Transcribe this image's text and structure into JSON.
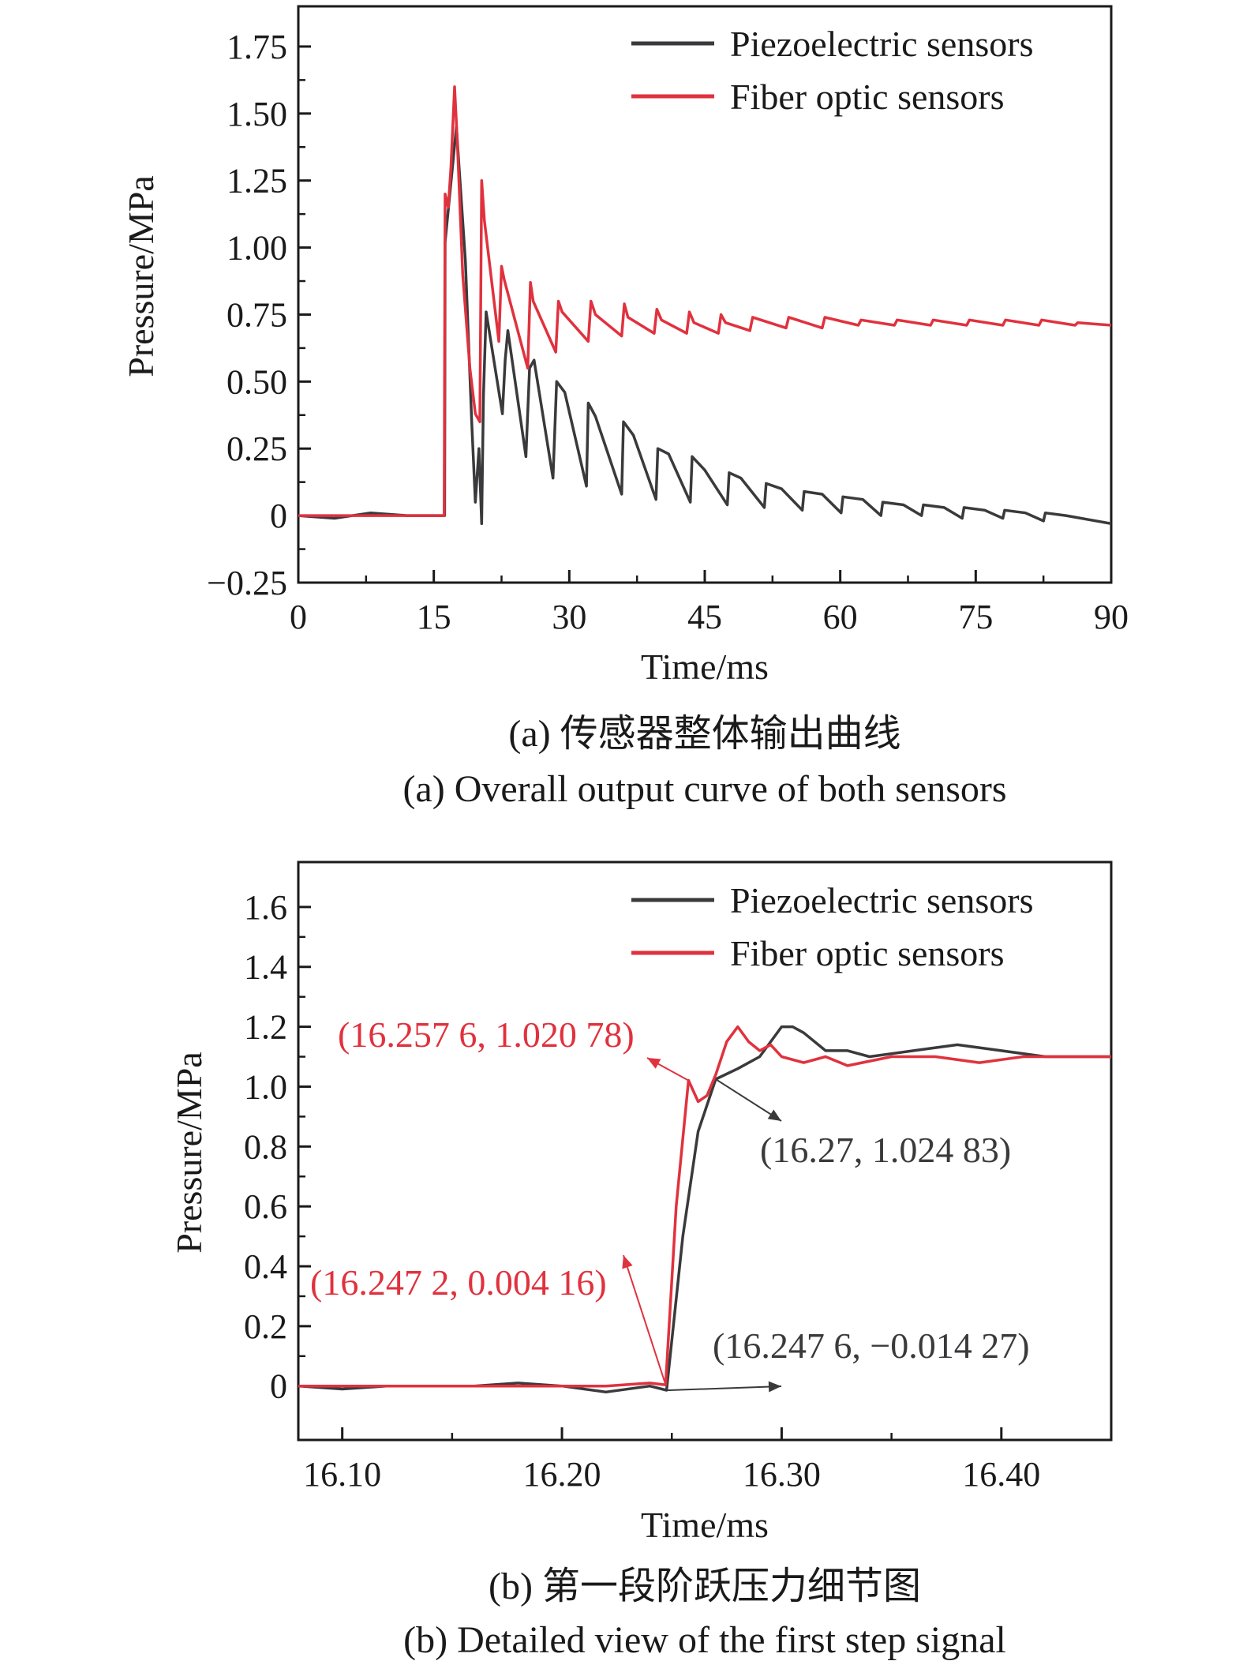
{
  "colors": {
    "piezo": "#3a3a3c",
    "fiber": "#e0323e",
    "axis": "#1a1a1a"
  },
  "chart_data": [
    {
      "type": "line",
      "xlabel": "Time/ms",
      "ylabel": "Pressure/MPa",
      "xlim": [
        0,
        90
      ],
      "ylim": [
        -0.25,
        1.9
      ],
      "xticks": [
        0,
        15,
        30,
        45,
        60,
        75,
        90
      ],
      "xtick_labels": [
        "0",
        "15",
        "30",
        "45",
        "60",
        "75",
        "90"
      ],
      "yticks": [
        -0.25,
        0,
        0.25,
        0.5,
        0.75,
        1.0,
        1.25,
        1.5,
        1.75
      ],
      "ytick_labels": [
        "−0.25",
        "0",
        "0.25",
        "0.50",
        "0.75",
        "1.00",
        "1.25",
        "1.50",
        "1.75"
      ],
      "grid": false,
      "legend_position": "top-right",
      "series": [
        {
          "name": "Piezoelectric sensors",
          "color": "#3a3a3c",
          "x": [
            0,
            4,
            8,
            12,
            16.2,
            16.25,
            17.5,
            18.5,
            19.2,
            19.6,
            20.0,
            20.3,
            20.5,
            20.8,
            22.6,
            22.9,
            23.2,
            25.2,
            25.6,
            26.1,
            28.2,
            28.6,
            29.5,
            31.9,
            32.1,
            32.9,
            35.8,
            36.0,
            37.1,
            39.6,
            39.8,
            41.0,
            43.4,
            43.6,
            45.0,
            47.5,
            47.7,
            49.0,
            51.6,
            51.8,
            53.5,
            55.8,
            56.0,
            58.0,
            60.1,
            60.3,
            62.5,
            64.5,
            64.7,
            67.0,
            69.0,
            69.2,
            71.5,
            73.5,
            73.7,
            76.0,
            78.0,
            78.2,
            80.5,
            82.5,
            82.7,
            85.0,
            90.0
          ],
          "y": [
            0.0,
            -0.01,
            0.01,
            0.0,
            0.0,
            1.02,
            1.45,
            0.95,
            0.35,
            0.05,
            0.25,
            -0.03,
            0.45,
            0.76,
            0.38,
            0.58,
            0.69,
            0.22,
            0.55,
            0.58,
            0.14,
            0.5,
            0.46,
            0.11,
            0.42,
            0.37,
            0.08,
            0.35,
            0.3,
            0.06,
            0.25,
            0.23,
            0.05,
            0.22,
            0.17,
            0.04,
            0.16,
            0.14,
            0.03,
            0.12,
            0.1,
            0.02,
            0.09,
            0.08,
            0.01,
            0.07,
            0.06,
            0.0,
            0.05,
            0.04,
            0.0,
            0.04,
            0.03,
            -0.01,
            0.03,
            0.02,
            -0.01,
            0.02,
            0.01,
            -0.02,
            0.01,
            0.0,
            -0.03
          ]
        },
        {
          "name": "Fiber optic sensors",
          "color": "#e0323e",
          "x": [
            0,
            4,
            8,
            12,
            16.15,
            16.25,
            16.6,
            16.9,
            17.3,
            17.6,
            18.2,
            19.0,
            19.6,
            20.1,
            20.3,
            20.6,
            22.2,
            22.5,
            22.8,
            25.4,
            25.7,
            26.0,
            28.5,
            28.8,
            29.2,
            32.1,
            32.4,
            32.9,
            35.8,
            36.1,
            36.5,
            39.4,
            39.7,
            40.2,
            43.0,
            43.3,
            43.8,
            46.5,
            46.8,
            47.3,
            50.0,
            50.3,
            54.0,
            54.3,
            58.0,
            58.3,
            62.0,
            62.3,
            66.0,
            66.3,
            70.0,
            70.3,
            74.0,
            74.3,
            78.0,
            78.3,
            82.0,
            82.3,
            86.0,
            86.3,
            90.0
          ],
          "y": [
            0.0,
            0.0,
            0.0,
            0.0,
            0.0,
            1.2,
            1.15,
            1.3,
            1.6,
            1.4,
            0.9,
            0.55,
            0.38,
            0.35,
            1.25,
            1.1,
            0.65,
            0.93,
            0.88,
            0.55,
            0.87,
            0.8,
            0.61,
            0.8,
            0.76,
            0.65,
            0.8,
            0.75,
            0.67,
            0.79,
            0.74,
            0.68,
            0.77,
            0.73,
            0.68,
            0.76,
            0.72,
            0.68,
            0.75,
            0.72,
            0.69,
            0.74,
            0.7,
            0.74,
            0.7,
            0.74,
            0.71,
            0.73,
            0.71,
            0.73,
            0.71,
            0.73,
            0.71,
            0.73,
            0.71,
            0.73,
            0.71,
            0.73,
            0.71,
            0.72,
            0.71
          ]
        }
      ]
    },
    {
      "type": "line",
      "xlabel": "Time/ms",
      "ylabel": "Pressure/MPa",
      "xlim": [
        16.08,
        16.45
      ],
      "ylim": [
        -0.18,
        1.75
      ],
      "xticks": [
        16.1,
        16.2,
        16.3,
        16.4
      ],
      "xtick_labels": [
        "16.10",
        "16.20",
        "16.30",
        "16.40"
      ],
      "yticks": [
        0,
        0.2,
        0.4,
        0.6,
        0.8,
        1.0,
        1.2,
        1.4,
        1.6
      ],
      "ytick_labels": [
        "0",
        "0.2",
        "0.4",
        "0.6",
        "0.8",
        "1.0",
        "1.2",
        "1.4",
        "1.6"
      ],
      "grid": false,
      "legend_position": "top-right",
      "series": [
        {
          "name": "Piezoelectric sensors",
          "color": "#3a3a3c",
          "x": [
            16.08,
            16.1,
            16.12,
            16.14,
            16.16,
            16.18,
            16.2,
            16.22,
            16.24,
            16.2476,
            16.255,
            16.262,
            16.27,
            16.28,
            16.29,
            16.295,
            16.3,
            16.305,
            16.31,
            16.32,
            16.33,
            16.34,
            16.36,
            16.38,
            16.4,
            16.42,
            16.45
          ],
          "y": [
            0.0,
            -0.01,
            0.0,
            0.0,
            0.0,
            0.01,
            0.0,
            -0.02,
            0.0,
            -0.014,
            0.5,
            0.85,
            1.025,
            1.06,
            1.1,
            1.15,
            1.2,
            1.2,
            1.18,
            1.12,
            1.12,
            1.1,
            1.12,
            1.14,
            1.12,
            1.1,
            1.1
          ]
        },
        {
          "name": "Fiber optic sensors",
          "color": "#e0323e",
          "x": [
            16.08,
            16.1,
            16.12,
            16.14,
            16.16,
            16.18,
            16.2,
            16.22,
            16.24,
            16.2472,
            16.252,
            16.2576,
            16.262,
            16.266,
            16.27,
            16.275,
            16.28,
            16.285,
            16.29,
            16.295,
            16.3,
            16.31,
            16.32,
            16.33,
            16.35,
            16.37,
            16.39,
            16.41,
            16.43,
            16.45
          ],
          "y": [
            0.0,
            0.0,
            0.0,
            0.0,
            0.0,
            0.0,
            0.0,
            0.0,
            0.01,
            0.004,
            0.6,
            1.021,
            0.95,
            0.97,
            1.04,
            1.15,
            1.2,
            1.15,
            1.12,
            1.14,
            1.1,
            1.08,
            1.1,
            1.07,
            1.1,
            1.1,
            1.08,
            1.1,
            1.1,
            1.1
          ]
        }
      ],
      "annotations": [
        {
          "text": "(16.257 6, 1.020 78)",
          "color": "#e0323e",
          "x": 16.2576,
          "y": 1.02078
        },
        {
          "text": "(16.27, 1.024 83)",
          "color": "#3a3a3c",
          "x": 16.27,
          "y": 1.02483
        },
        {
          "text": "(16.247 2, 0.004 16)",
          "color": "#e0323e",
          "x": 16.2472,
          "y": 0.00416
        },
        {
          "text": "(16.247 6, −0.014 27)",
          "color": "#3a3a3c",
          "x": 16.2476,
          "y": -0.01427
        }
      ]
    }
  ],
  "captions": {
    "a_zh": "(a) 传感器整体输出曲线",
    "a_en": "(a) Overall output curve of both sensors",
    "b_zh": "(b) 第一段阶跃压力细节图",
    "b_en": "(b) Detailed view of the first step signal"
  }
}
